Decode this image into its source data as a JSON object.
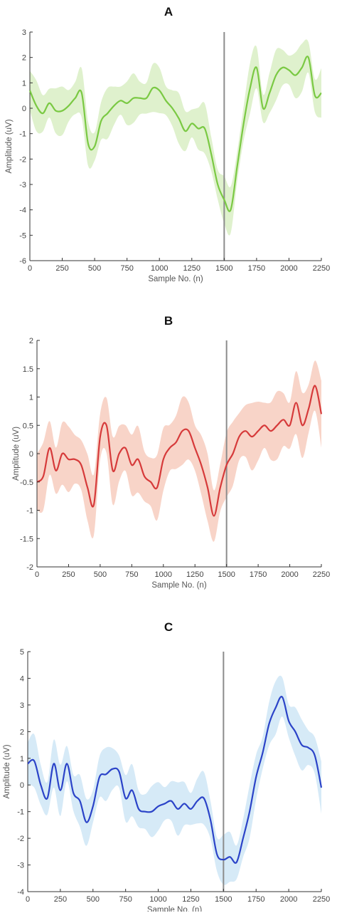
{
  "figure": {
    "panel_letters": [
      "A",
      "B",
      "C"
    ]
  },
  "chart_data": [
    {
      "type": "line",
      "panel": "A",
      "xlabel": "Sample No. (n)",
      "ylabel": "Amplitude (uV)",
      "xlim": [
        0,
        2250
      ],
      "ylim": [
        -6,
        3
      ],
      "xticks": [
        0,
        250,
        500,
        750,
        1000,
        1250,
        1500,
        1750,
        2000,
        2250
      ],
      "yticks": [
        -6,
        -5,
        -4,
        -3,
        -2,
        -1,
        0,
        1,
        2,
        3
      ],
      "event_marker_x": 1500,
      "line_color": "#7ac943",
      "band_color": "#dcefc8",
      "band_halfwidth": [
        0.55,
        1.0
      ],
      "x": [
        0,
        50,
        100,
        150,
        200,
        250,
        300,
        350,
        400,
        450,
        500,
        550,
        600,
        650,
        700,
        750,
        800,
        850,
        900,
        950,
        1000,
        1050,
        1100,
        1150,
        1200,
        1250,
        1300,
        1350,
        1400,
        1450,
        1500,
        1550,
        1600,
        1650,
        1700,
        1750,
        1800,
        1850,
        1900,
        1950,
        2000,
        2050,
        2100,
        2150,
        2200,
        2250
      ],
      "values": [
        0.7,
        0.1,
        -0.2,
        0.2,
        -0.1,
        -0.1,
        0.1,
        0.4,
        0.6,
        -1.4,
        -1.5,
        -0.5,
        -0.2,
        0.1,
        0.3,
        0.2,
        0.4,
        0.4,
        0.4,
        0.8,
        0.7,
        0.3,
        0.0,
        -0.4,
        -0.9,
        -0.6,
        -0.8,
        -0.8,
        -1.8,
        -3.0,
        -3.6,
        -4.0,
        -2.3,
        -0.6,
        0.8,
        1.6,
        0.0,
        0.6,
        1.3,
        1.6,
        1.5,
        1.3,
        1.6,
        2.0,
        0.5,
        0.6
      ]
    },
    {
      "type": "line",
      "panel": "B",
      "xlabel": "Sample No. (n)",
      "ylabel": "Amplitude (uV)",
      "xlim": [
        0,
        2250
      ],
      "ylim": [
        -2,
        2
      ],
      "xticks": [
        0,
        250,
        500,
        750,
        1000,
        1250,
        1500,
        1750,
        2000,
        2250
      ],
      "yticks": [
        -2,
        -1.5,
        -1,
        -0.5,
        0,
        0.5,
        1,
        1.5,
        2
      ],
      "event_marker_x": 1500,
      "line_color": "#d63a3a",
      "band_color": "#f7cfc2",
      "band_halfwidth": [
        0.4,
        0.6
      ],
      "x": [
        0,
        50,
        100,
        150,
        200,
        250,
        300,
        350,
        400,
        450,
        500,
        550,
        600,
        650,
        700,
        750,
        800,
        850,
        900,
        950,
        1000,
        1050,
        1100,
        1150,
        1200,
        1250,
        1300,
        1350,
        1400,
        1450,
        1500,
        1550,
        1600,
        1650,
        1700,
        1750,
        1800,
        1850,
        1900,
        1950,
        2000,
        2050,
        2100,
        2150,
        2200,
        2250
      ],
      "values": [
        -0.5,
        -0.4,
        0.1,
        -0.3,
        0.0,
        -0.1,
        -0.1,
        -0.2,
        -0.6,
        -0.9,
        0.3,
        0.5,
        -0.3,
        0.0,
        0.1,
        -0.2,
        -0.1,
        -0.4,
        -0.5,
        -0.6,
        -0.1,
        0.1,
        0.2,
        0.4,
        0.4,
        0.1,
        -0.2,
        -0.6,
        -1.1,
        -0.6,
        -0.2,
        0.0,
        0.3,
        0.4,
        0.3,
        0.4,
        0.5,
        0.4,
        0.5,
        0.6,
        0.5,
        0.9,
        0.5,
        0.8,
        1.2,
        0.7
      ]
    },
    {
      "type": "line",
      "panel": "C",
      "xlabel": "Sample No. (n)",
      "ylabel": "Amplitude (uV)",
      "xlim": [
        0,
        2250
      ],
      "ylim": [
        -4,
        5
      ],
      "xticks": [
        0,
        250,
        500,
        750,
        1000,
        1250,
        1500,
        1750,
        2000,
        2250
      ],
      "yticks": [
        -4,
        -3,
        -2,
        -1,
        0,
        1,
        2,
        3,
        4,
        5
      ],
      "event_marker_x": 1500,
      "line_color": "#2b43c8",
      "band_color": "#d2e8f6",
      "band_halfwidth": [
        0.6,
        1.0
      ],
      "x": [
        0,
        50,
        100,
        150,
        200,
        250,
        300,
        350,
        400,
        450,
        500,
        550,
        600,
        650,
        700,
        750,
        800,
        850,
        900,
        950,
        1000,
        1050,
        1100,
        1150,
        1200,
        1250,
        1300,
        1350,
        1400,
        1450,
        1500,
        1550,
        1600,
        1650,
        1700,
        1750,
        1800,
        1850,
        1900,
        1950,
        2000,
        2050,
        2100,
        2150,
        2200,
        2250
      ],
      "values": [
        0.8,
        0.9,
        0.0,
        -0.5,
        0.8,
        -0.2,
        0.8,
        -0.3,
        -0.6,
        -1.4,
        -0.8,
        0.3,
        0.4,
        0.6,
        0.5,
        -0.5,
        -0.2,
        -0.9,
        -1.0,
        -1.0,
        -0.8,
        -0.7,
        -0.6,
        -0.9,
        -0.7,
        -0.9,
        -0.6,
        -0.5,
        -1.3,
        -2.6,
        -2.8,
        -2.7,
        -2.9,
        -2.0,
        -1.0,
        0.3,
        1.2,
        2.3,
        2.9,
        3.3,
        2.4,
        2.0,
        1.5,
        1.4,
        1.1,
        -0.1
      ]
    }
  ]
}
